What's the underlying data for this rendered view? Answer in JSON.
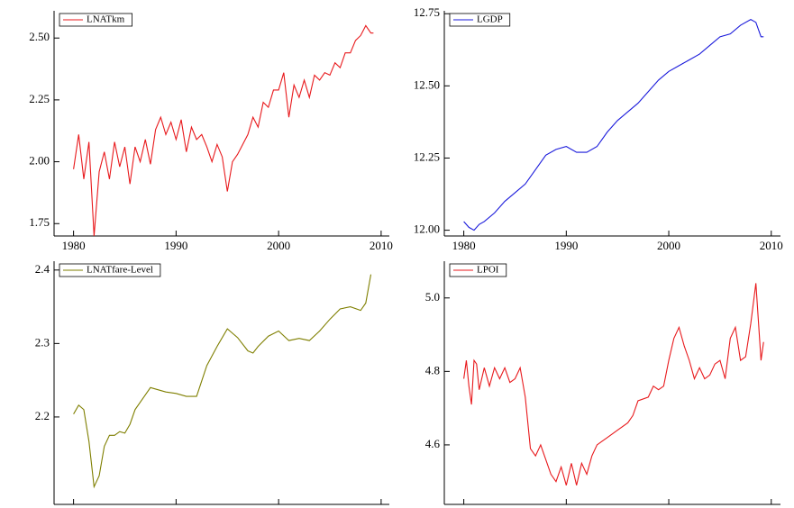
{
  "chart_data": [
    {
      "type": "line",
      "xlim": [
        1978.1,
        2010.8
      ],
      "xticks": [
        1980,
        1990,
        2000,
        2010
      ],
      "ylim": [
        1.7,
        2.61
      ],
      "yticks": [
        1.75,
        {
          "value": 2,
          "label": "2.00"
        },
        2.25,
        {
          "value": 2.5,
          "label": "2.50"
        }
      ],
      "x": [
        1980,
        1980.5,
        1981,
        1981.5,
        1982,
        1982.5,
        1983,
        1983.5,
        1984,
        1984.5,
        1985,
        1985.5,
        1986,
        1986.5,
        1987,
        1987.5,
        1988,
        1988.5,
        1989,
        1989.5,
        1990,
        1990.5,
        1991,
        1991.5,
        1992,
        1992.5,
        1993,
        1993.5,
        1994,
        1994.5,
        1995,
        1995.5,
        1996,
        1996.5,
        1997,
        1997.5,
        1998,
        1998.5,
        1999,
        1999.5,
        2000,
        2000.5,
        2001,
        2001.5,
        2002,
        2002.5,
        2003,
        2003.5,
        2004,
        2004.5,
        2005,
        2005.5,
        2006,
        2006.5,
        2007,
        2007.5,
        2008,
        2008.5,
        2009,
        2009.25
      ],
      "series": [
        {
          "name": "LNATkm",
          "color": "#e8191c",
          "values": [
            1.97,
            2.11,
            1.93,
            2.08,
            1.7,
            1.96,
            2.04,
            1.93,
            2.08,
            1.98,
            2.06,
            1.91,
            2.06,
            2.0,
            2.09,
            1.99,
            2.13,
            2.18,
            2.11,
            2.16,
            2.09,
            2.17,
            2.04,
            2.14,
            2.09,
            2.11,
            2.06,
            2.0,
            2.07,
            2.02,
            1.88,
            2.0,
            2.03,
            2.07,
            2.11,
            2.18,
            2.14,
            2.24,
            2.22,
            2.29,
            2.29,
            2.36,
            2.18,
            2.31,
            2.26,
            2.33,
            2.26,
            2.35,
            2.33,
            2.36,
            2.35,
            2.4,
            2.38,
            2.44,
            2.44,
            2.49,
            2.51,
            2.55,
            2.52,
            2.52
          ]
        }
      ]
    },
    {
      "type": "line",
      "xlim": [
        1978.1,
        2010.9
      ],
      "xticks": [
        1980,
        1990,
        2000,
        2010
      ],
      "ylim": [
        11.98,
        12.76
      ],
      "yticks": [
        {
          "value": 12,
          "label": "12.00"
        },
        12.25,
        {
          "value": 12.5,
          "label": "12.50"
        },
        12.75
      ],
      "x": [
        1980,
        1980.5,
        1981,
        1981.5,
        1982,
        1983,
        1984,
        1985,
        1986,
        1987,
        1988,
        1989,
        1990,
        1991,
        1992,
        1993,
        1994,
        1995,
        1996,
        1997,
        1998,
        1999,
        2000,
        2001,
        2002,
        2003,
        2004,
        2005,
        2006,
        2007,
        2008,
        2008.5,
        2009,
        2009.25
      ],
      "series": [
        {
          "name": "LGDP",
          "color": "#1a1adb",
          "values": [
            12.03,
            12.01,
            12.0,
            12.02,
            12.03,
            12.06,
            12.1,
            12.13,
            12.16,
            12.21,
            12.26,
            12.28,
            12.29,
            12.27,
            12.27,
            12.29,
            12.34,
            12.38,
            12.41,
            12.44,
            12.48,
            12.52,
            12.55,
            12.57,
            12.59,
            12.61,
            12.64,
            12.67,
            12.68,
            12.71,
            12.73,
            12.72,
            12.67,
            12.67
          ]
        }
      ]
    },
    {
      "type": "line",
      "xlim": [
        1978.1,
        2010.8
      ],
      "xticks": [
        1980,
        1990,
        2000,
        2010
      ],
      "ylim": [
        2.081,
        2.412
      ],
      "yticks": [
        2.2,
        2.3,
        2.4
      ],
      "x": [
        1980,
        1980.5,
        1981,
        1981.5,
        1982,
        1982.5,
        1983,
        1983.5,
        1984,
        1984.5,
        1985,
        1985.5,
        1986,
        1987,
        1987.5,
        1988,
        1989,
        1990,
        1991,
        1992,
        1993,
        1994,
        1995,
        1996,
        1997,
        1997.5,
        1998,
        1999,
        2000,
        2001,
        2002,
        2003,
        2004,
        2005,
        2006,
        2007,
        2008,
        2008.5,
        2009
      ],
      "series": [
        {
          "name": "LNATfare-Level",
          "color": "#7f7f00",
          "values": [
            2.204,
            2.216,
            2.21,
            2.167,
            2.105,
            2.12,
            2.16,
            2.175,
            2.175,
            2.18,
            2.178,
            2.19,
            2.21,
            2.23,
            2.24,
            2.238,
            2.234,
            2.232,
            2.228,
            2.228,
            2.27,
            2.296,
            2.32,
            2.308,
            2.29,
            2.287,
            2.296,
            2.31,
            2.317,
            2.304,
            2.307,
            2.304,
            2.317,
            2.333,
            2.347,
            2.35,
            2.345,
            2.355,
            2.394
          ]
        }
      ]
    },
    {
      "type": "line",
      "xlim": [
        1978.1,
        2010.9
      ],
      "xticks": [
        1980,
        1990,
        2000,
        2010
      ],
      "ylim": [
        4.438,
        5.1
      ],
      "yticks": [
        4.6,
        4.8,
        {
          "value": 5,
          "label": "5.0"
        }
      ],
      "x": [
        1980,
        1980.25,
        1980.5,
        1980.75,
        1981,
        1981.25,
        1981.5,
        1982,
        1982.5,
        1983,
        1983.5,
        1984,
        1984.5,
        1985,
        1985.5,
        1986,
        1986.5,
        1987,
        1987.5,
        1988,
        1988.5,
        1989,
        1989.5,
        1990,
        1990.5,
        1991,
        1991.5,
        1992,
        1992.5,
        1993,
        1993.5,
        1994,
        1995,
        1996,
        1996.5,
        1997,
        1998,
        1998.5,
        1999,
        1999.5,
        2000,
        2000.5,
        2001,
        2001.5,
        2002,
        2002.5,
        2003,
        2003.5,
        2004,
        2004.5,
        2005,
        2005.5,
        2006,
        2006.5,
        2007,
        2007.5,
        2008,
        2008.5,
        2009,
        2009.25
      ],
      "series": [
        {
          "name": "LPOI",
          "color": "#e8191c",
          "values": [
            4.78,
            4.83,
            4.76,
            4.71,
            4.83,
            4.82,
            4.75,
            4.81,
            4.76,
            4.81,
            4.78,
            4.81,
            4.77,
            4.78,
            4.81,
            4.73,
            4.59,
            4.57,
            4.6,
            4.56,
            4.52,
            4.5,
            4.54,
            4.49,
            4.55,
            4.49,
            4.55,
            4.52,
            4.57,
            4.6,
            4.61,
            4.62,
            4.64,
            4.66,
            4.68,
            4.72,
            4.73,
            4.76,
            4.75,
            4.76,
            4.83,
            4.89,
            4.92,
            4.87,
            4.83,
            4.78,
            4.81,
            4.78,
            4.79,
            4.82,
            4.83,
            4.78,
            4.89,
            4.92,
            4.83,
            4.84,
            4.93,
            5.04,
            4.83,
            4.88
          ]
        }
      ]
    }
  ]
}
